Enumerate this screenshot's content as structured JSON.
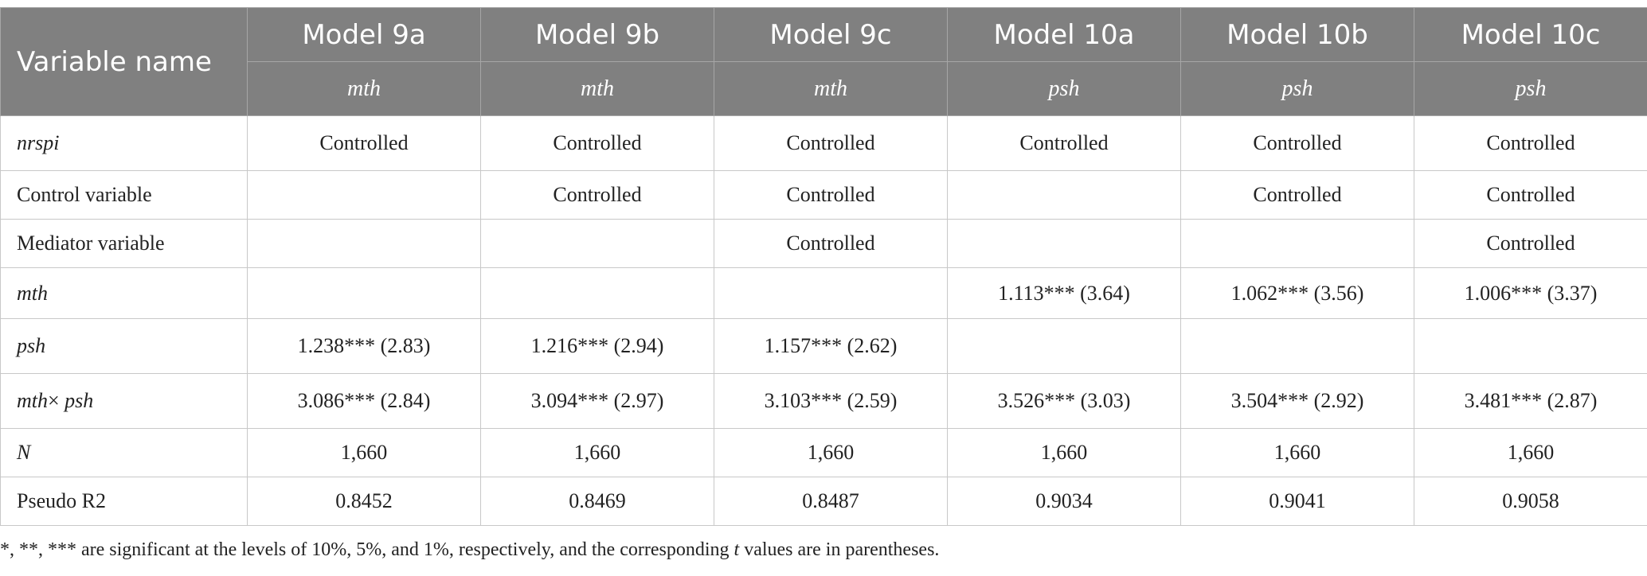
{
  "table": {
    "header": {
      "first_col": "Variable name",
      "models": [
        "Model 9a",
        "Model 9b",
        "Model 9c",
        "Model 10a",
        "Model 10b",
        "Model 10c"
      ],
      "dependent": [
        "mth",
        "mth",
        "mth",
        "psh",
        "psh",
        "psh"
      ]
    },
    "rows": [
      {
        "label": "nrspi",
        "cells": [
          "Controlled",
          "Controlled",
          "Controlled",
          "Controlled",
          "Controlled",
          "Controlled"
        ]
      },
      {
        "label": "Control variable",
        "cells": [
          "",
          "Controlled",
          "Controlled",
          "",
          "Controlled",
          "Controlled"
        ]
      },
      {
        "label": "Mediator variable",
        "cells": [
          "",
          "",
          "Controlled",
          "",
          "",
          "Controlled"
        ]
      },
      {
        "label": "mth",
        "cells": [
          "",
          "",
          "",
          "1.113*** (3.64)",
          "1.062*** (3.56)",
          "1.006*** (3.37)"
        ]
      },
      {
        "label": "psh",
        "cells": [
          "1.238*** (2.83)",
          "1.216*** (2.94)",
          "1.157*** (2.62)",
          "",
          "",
          ""
        ]
      },
      {
        "label_a": "mth",
        "label_op": "×",
        "label_b": "psh",
        "cells": [
          "3.086*** (2.84)",
          "3.094*** (2.97)",
          "3.103*** (2.59)",
          "3.526*** (3.03)",
          "3.504*** (2.92)",
          "3.481*** (2.87)"
        ]
      },
      {
        "label": "N",
        "cells": [
          "1,660",
          "1,660",
          "1,660",
          "1,660",
          "1,660",
          "1,660"
        ]
      },
      {
        "label": "Pseudo R2",
        "cells": [
          "0.8452",
          "0.8469",
          "0.8487",
          "0.9034",
          "0.9041",
          "0.9058"
        ]
      }
    ]
  },
  "footnote": {
    "before": "*, **, *** are significant at the levels of 10%, 5%, and 1%, respectively, and the corresponding ",
    "italic": "t",
    "after": " values are in parentheses."
  }
}
